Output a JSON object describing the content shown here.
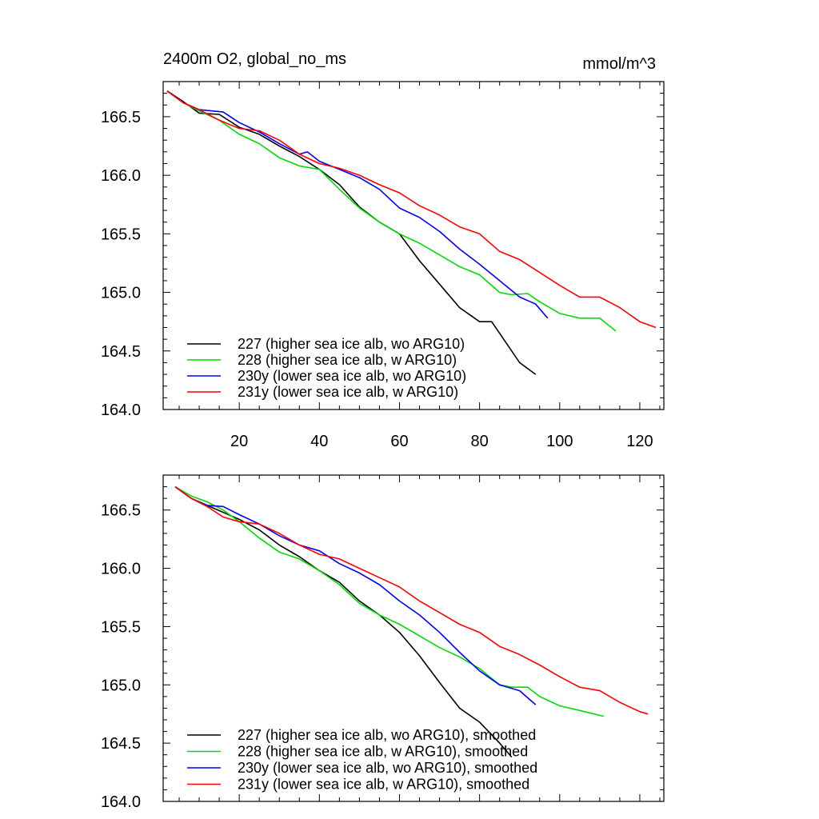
{
  "figure": {
    "title_left": "2400m O2, global_no_ms",
    "title_right": "mmol/m^3"
  },
  "chart_data": [
    {
      "type": "line",
      "title": "2400m O2, global_no_ms",
      "units": "mmol/m^3",
      "xlim": [
        1,
        126
      ],
      "ylim": [
        164.0,
        166.8
      ],
      "xticks": [
        20,
        40,
        60,
        80,
        100,
        120
      ],
      "yticks": [
        164.5,
        165.0,
        165.5,
        166.0,
        166.5
      ],
      "ytick_labels": [
        "164.0",
        "164.5",
        "165.0",
        "165.5",
        "166.0",
        "166.5"
      ],
      "ytick_values": [
        164.0,
        164.5,
        165.0,
        165.5,
        166.0,
        166.5
      ],
      "xtick_labels": [
        "20",
        "40",
        "60",
        "80",
        "100",
        "120"
      ],
      "show_xtick_labels": true,
      "legend": "bottom-left",
      "series": [
        {
          "name": "227 (higher sea ice alb, wo ARG10)",
          "color": "#000000",
          "x": [
            2,
            6,
            10,
            15,
            20,
            25,
            30,
            35,
            40,
            45,
            50,
            55,
            60,
            65,
            70,
            75,
            80,
            83,
            86,
            90,
            94
          ],
          "y": [
            166.72,
            166.63,
            166.53,
            166.52,
            166.41,
            166.35,
            166.25,
            166.16,
            166.05,
            165.92,
            165.73,
            165.6,
            165.5,
            165.27,
            165.07,
            164.87,
            164.75,
            164.75,
            164.6,
            164.4,
            164.3
          ]
        },
        {
          "name": "228 (higher sea ice alb, w ARG10)",
          "color": "#00dd00",
          "x": [
            2,
            6,
            10,
            15,
            20,
            25,
            30,
            35,
            40,
            45,
            50,
            55,
            60,
            65,
            70,
            75,
            80,
            85,
            88,
            92,
            95,
            100,
            105,
            110,
            114
          ],
          "y": [
            166.72,
            166.62,
            166.55,
            166.47,
            166.35,
            166.27,
            166.15,
            166.08,
            166.05,
            165.88,
            165.72,
            165.6,
            165.5,
            165.42,
            165.32,
            165.22,
            165.15,
            165.0,
            164.98,
            164.99,
            164.92,
            164.82,
            164.78,
            164.78,
            164.67
          ]
        },
        {
          "name": "230y (lower sea ice alb, wo ARG10)",
          "color": "#0000ff",
          "x": [
            2,
            6,
            10,
            16,
            20,
            25,
            30,
            35,
            37,
            40,
            45,
            50,
            55,
            60,
            65,
            70,
            75,
            80,
            85,
            90,
            94,
            97
          ],
          "y": [
            166.72,
            166.62,
            166.56,
            166.54,
            166.45,
            166.37,
            166.27,
            166.18,
            166.2,
            166.12,
            166.05,
            165.98,
            165.88,
            165.72,
            165.64,
            165.52,
            165.37,
            165.24,
            165.1,
            164.96,
            164.9,
            164.78
          ]
        },
        {
          "name": "231y (lower sea ice alb, w ARG10)",
          "color": "#ff0000",
          "x": [
            2,
            6,
            10,
            15,
            20,
            25,
            30,
            35,
            40,
            45,
            50,
            55,
            60,
            65,
            70,
            75,
            80,
            85,
            90,
            95,
            100,
            105,
            110,
            115,
            120,
            124
          ],
          "y": [
            166.72,
            166.62,
            166.56,
            166.47,
            166.4,
            166.38,
            166.3,
            166.18,
            166.1,
            166.06,
            166.0,
            165.92,
            165.85,
            165.74,
            165.66,
            165.56,
            165.5,
            165.35,
            165.28,
            165.17,
            165.06,
            164.96,
            164.96,
            164.87,
            164.75,
            164.7
          ]
        }
      ]
    },
    {
      "type": "line",
      "title": "",
      "xlim": [
        1,
        126
      ],
      "ylim": [
        164.0,
        166.8
      ],
      "xticks": [
        20,
        40,
        60,
        80,
        100,
        120
      ],
      "ytick_labels": [
        "164.0",
        "164.5",
        "165.0",
        "165.5",
        "166.0",
        "166.5"
      ],
      "ytick_values": [
        164.0,
        164.5,
        165.0,
        165.5,
        166.0,
        166.5
      ],
      "xtick_labels": [],
      "show_xtick_labels": false,
      "legend": "bottom-left",
      "series": [
        {
          "name": "227 (higher sea ice alb, wo ARG10), smoothed",
          "color": "#000000",
          "x": [
            4,
            8,
            12,
            16,
            20,
            25,
            30,
            35,
            40,
            45,
            50,
            55,
            60,
            65,
            70,
            75,
            80,
            85,
            88
          ],
          "y": [
            166.7,
            166.6,
            166.54,
            166.48,
            166.42,
            166.33,
            166.2,
            166.1,
            165.98,
            165.88,
            165.72,
            165.6,
            165.45,
            165.25,
            165.02,
            164.8,
            164.68,
            164.5,
            164.38
          ]
        },
        {
          "name": "228 (higher sea ice alb, w ARG10), smoothed",
          "color": "#00dd00",
          "x": [
            4,
            8,
            12,
            16,
            20,
            25,
            30,
            35,
            40,
            45,
            50,
            55,
            60,
            65,
            70,
            75,
            80,
            85,
            88,
            92,
            95,
            100,
            105,
            111
          ],
          "y": [
            166.7,
            166.62,
            166.57,
            166.5,
            166.4,
            166.26,
            166.14,
            166.08,
            165.98,
            165.86,
            165.7,
            165.6,
            165.52,
            165.42,
            165.32,
            165.24,
            165.14,
            165.0,
            164.98,
            164.98,
            164.9,
            164.82,
            164.78,
            164.73
          ]
        },
        {
          "name": "230y (lower sea ice alb, wo ARG10), smoothed",
          "color": "#0000ff",
          "x": [
            4,
            8,
            12,
            16,
            20,
            25,
            30,
            35,
            40,
            45,
            50,
            55,
            60,
            65,
            70,
            75,
            80,
            85,
            90,
            94
          ],
          "y": [
            166.7,
            166.6,
            166.54,
            166.53,
            166.46,
            166.38,
            166.28,
            166.2,
            166.15,
            166.04,
            165.96,
            165.86,
            165.72,
            165.6,
            165.45,
            165.28,
            165.12,
            165.0,
            164.95,
            164.83
          ]
        },
        {
          "name": "231y (lower sea ice alb, w ARG10), smoothed",
          "color": "#ff0000",
          "x": [
            4,
            8,
            12,
            16,
            20,
            25,
            30,
            35,
            40,
            45,
            50,
            55,
            60,
            65,
            70,
            75,
            80,
            85,
            90,
            95,
            100,
            105,
            110,
            115,
            120,
            122
          ],
          "y": [
            166.7,
            166.6,
            166.53,
            166.44,
            166.4,
            166.38,
            166.3,
            166.2,
            166.12,
            166.08,
            166.0,
            165.92,
            165.84,
            165.72,
            165.62,
            165.52,
            165.45,
            165.33,
            165.26,
            165.17,
            165.07,
            164.98,
            164.95,
            164.85,
            164.77,
            164.75
          ]
        }
      ]
    }
  ]
}
